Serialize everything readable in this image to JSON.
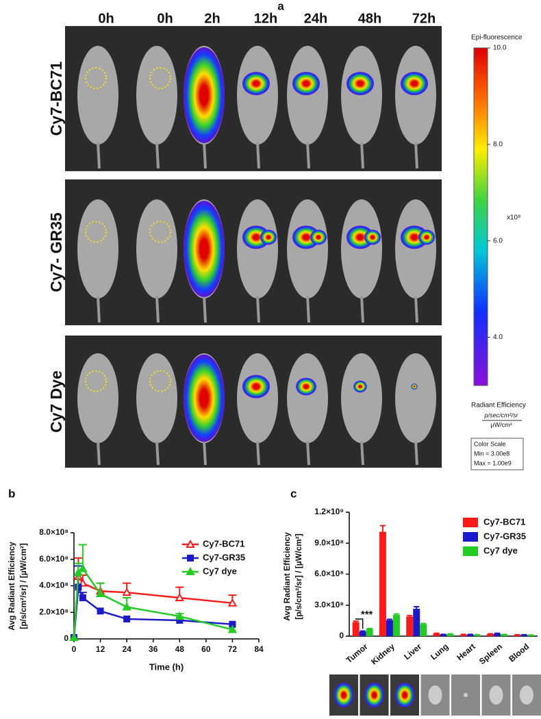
{
  "panel_labels": [
    "a",
    "b",
    "c"
  ],
  "panel_a": {
    "time_labels": [
      "0h",
      "0h",
      "2h",
      "12h",
      "24h",
      "48h",
      "72h"
    ],
    "row_labels": [
      "Cy7-BC71",
      "Cy7- GR35",
      "Cy7 Dye"
    ],
    "colorbar": {
      "title": "Epi-fluorescence",
      "range": [
        3,
        10
      ],
      "ticks": [
        {
          "value": 10,
          "label": "10.0"
        },
        {
          "value": 8,
          "label": "8.0"
        },
        {
          "value": 6,
          "label": "6.0"
        },
        {
          "value": 4,
          "label": "4.0"
        }
      ],
      "multiplier": "x10⁸",
      "unit_title": "Radiant Efficiency",
      "unit_numerator": "p/sec/cm²/sr",
      "unit_denominator": "µW/cm²",
      "scale_title": "Color Scale",
      "scale_min": "Min = 3.00e8",
      "scale_max": "Max = 1.00e9"
    }
  },
  "chart_data": [
    {
      "type": "line",
      "x_label": "Time (h)",
      "y_label": [
        "Avg Radiant Efficiency",
        "[p/s/cm²/sr] / [µW/cm²]"
      ],
      "x": [
        0,
        2,
        4,
        12,
        24,
        48,
        72
      ],
      "xlim": [
        0,
        84
      ],
      "xticks": [
        0,
        12,
        24,
        36,
        48,
        60,
        72,
        84
      ],
      "ylim": [
        0,
        800000000
      ],
      "yticks": [
        0,
        {
          "value": 200000000,
          "label": "2.0×10⁸"
        },
        {
          "value": 400000000,
          "label": "4.0×10⁸"
        },
        {
          "value": 600000000,
          "label": "6.0×10⁸"
        },
        {
          "value": 800000000,
          "label": "8.0×10⁸"
        }
      ],
      "series": [
        {
          "name": "Cy7-BC71",
          "color": "#ff1a1a",
          "marker": "triangle-open",
          "values": [
            10000000,
            470000000,
            420000000,
            360000000,
            350000000,
            310000000,
            270000000
          ],
          "errors": [
            0,
            140000000,
            60000000,
            60000000,
            70000000,
            80000000,
            60000000
          ]
        },
        {
          "name": "Cy7-GR35",
          "color": "#1a1acc",
          "marker": "square",
          "values": [
            10000000,
            390000000,
            310000000,
            210000000,
            150000000,
            140000000,
            110000000
          ],
          "errors": [
            0,
            160000000,
            40000000,
            0,
            0,
            0,
            0
          ]
        },
        {
          "name": "Cy7 dye",
          "color": "#22cc22",
          "marker": "triangle",
          "values": [
            10000000,
            500000000,
            530000000,
            340000000,
            240000000,
            170000000,
            70000000
          ],
          "errors": [
            0,
            70000000,
            180000000,
            80000000,
            70000000,
            20000000,
            0
          ]
        }
      ]
    },
    {
      "type": "bar",
      "y_label": [
        "Avg Radiant Efficiency",
        "[p/s/cm²/sr] / [µW/cm²]"
      ],
      "categories": [
        "Tumor",
        "Kidney",
        "Liver",
        "Lung",
        "Heart",
        "Spleen",
        "Blood"
      ],
      "ylim": [
        0,
        1200000000
      ],
      "yticks": [
        0,
        {
          "value": 300000000,
          "label": "3.0×10⁸"
        },
        {
          "value": 600000000,
          "label": "6.0×10⁸"
        },
        {
          "value": 900000000,
          "label": "9.0×10⁸"
        },
        {
          "value": 1200000000,
          "label": "1.2×10⁹"
        }
      ],
      "annotation": "***",
      "series": [
        {
          "name": "Cy7-BC71",
          "color": "#ff1a1a",
          "values": [
            135000000,
            1010000000,
            190000000,
            25000000,
            15000000,
            20000000,
            12000000
          ],
          "errors": [
            10000000,
            60000000,
            10000000,
            3000000,
            2000000,
            3000000,
            2000000
          ]
        },
        {
          "name": "Cy7-GR35",
          "color": "#1a1acc",
          "values": [
            45000000,
            155000000,
            265000000,
            15000000,
            15000000,
            25000000,
            12000000
          ],
          "errors": [
            5000000,
            8000000,
            20000000,
            2000000,
            2000000,
            3000000,
            2000000
          ]
        },
        {
          "name": "Cy7 dye",
          "color": "#22cc22",
          "values": [
            70000000,
            205000000,
            115000000,
            20000000,
            12000000,
            15000000,
            10000000
          ],
          "errors": [
            5000000,
            10000000,
            8000000,
            2000000,
            2000000,
            2000000,
            2000000
          ]
        }
      ]
    }
  ]
}
